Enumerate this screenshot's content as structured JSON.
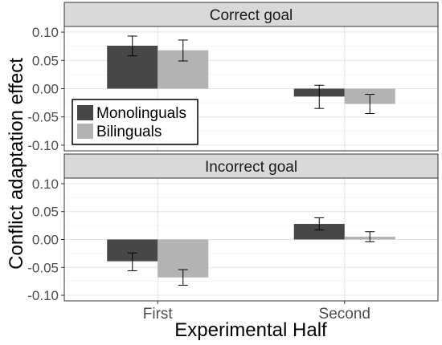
{
  "chart_data": {
    "type": "bar",
    "xlabel": "Experimental Half",
    "ylabel": "Conflict adaptation effect",
    "categories": [
      "First",
      "Second"
    ],
    "ylim": [
      -0.11,
      0.11
    ],
    "yticks": [
      0.1,
      0.05,
      0.0,
      -0.05,
      -0.1
    ],
    "ytick_labels": [
      "0.10",
      "0.05",
      "0.00",
      "-0.05",
      "-0.10"
    ],
    "grid": true,
    "legend_position": "bottom-left of top panel",
    "series": [
      {
        "name": "Monolinguals",
        "color": "#474747"
      },
      {
        "name": "Bilinguals",
        "color": "#b3b3b3"
      }
    ],
    "panels": [
      {
        "title": "Correct goal",
        "values": {
          "Monolinguals": [
            0.076,
            -0.014
          ],
          "Bilinguals": [
            0.068,
            -0.027
          ]
        },
        "errors": {
          "Monolinguals": [
            [
              0.058,
              0.093
            ],
            [
              -0.035,
              0.006
            ]
          ],
          "Bilinguals": [
            [
              0.049,
              0.086
            ],
            [
              -0.044,
              -0.01
            ]
          ]
        },
        "show_legend": true
      },
      {
        "title": "Incorrect goal",
        "values": {
          "Monolinguals": [
            -0.039,
            0.028
          ],
          "Bilinguals": [
            -0.068,
            0.005
          ]
        },
        "errors": {
          "Monolinguals": [
            [
              -0.056,
              -0.024
            ],
            [
              0.017,
              0.039
            ]
          ],
          "Bilinguals": [
            [
              -0.082,
              -0.054
            ],
            [
              -0.004,
              0.014
            ]
          ]
        },
        "show_legend": false
      }
    ]
  }
}
